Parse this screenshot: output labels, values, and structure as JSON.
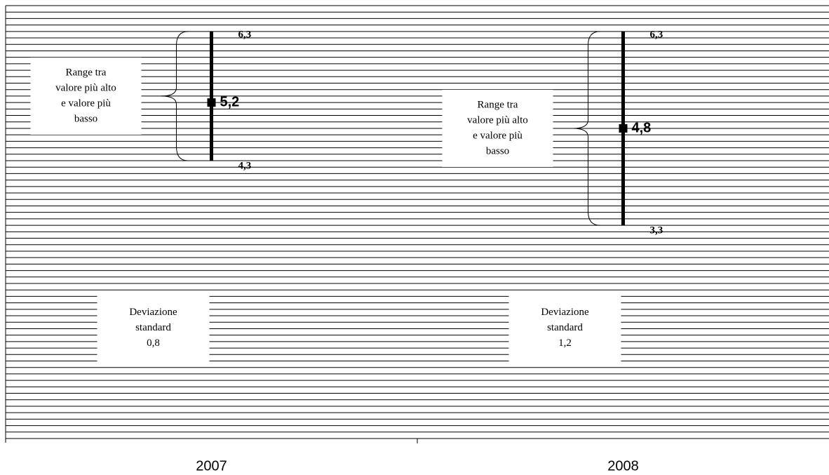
{
  "chart_data": {
    "type": "high-low",
    "categories": [
      "2007",
      "2008"
    ],
    "high": {
      "values": [
        6.3,
        6.3
      ],
      "value_labels": [
        "6,3",
        "6,3"
      ]
    },
    "low": {
      "values": [
        4.3,
        3.3
      ],
      "value_labels": [
        "4,3",
        "3,3"
      ]
    },
    "mean": {
      "values": [
        5.2,
        4.8
      ],
      "value_labels": [
        "5,2",
        "4,8"
      ]
    },
    "range_label": [
      "Range tra",
      "valore più alto",
      "e valore più",
      "basso"
    ],
    "std_dev_label": [
      "Deviazione",
      "standard"
    ],
    "std_dev": {
      "values": [
        0.8,
        1.2
      ],
      "value_labels": [
        "0,8",
        "1,2"
      ]
    },
    "ylim": [
      0,
      6.7
    ],
    "yticks": [
      0,
      0.1,
      0.2,
      0.3,
      0.4,
      0.5,
      0.6,
      0.7,
      0.8,
      0.9,
      1,
      1.1,
      1.2,
      1.3,
      1.4,
      1.5,
      1.6,
      1.7,
      1.8,
      1.9,
      2,
      2.1,
      2.2,
      2.3,
      2.4,
      2.5,
      2.6,
      2.7,
      2.8,
      2.9,
      3,
      3.1,
      3.2,
      3.3,
      3.4,
      3.5,
      3.6,
      3.7,
      3.8,
      3.9,
      4,
      4.1,
      4.2,
      4.3,
      4.4,
      4.5,
      4.6,
      4.7,
      4.8,
      4.9,
      5,
      5.1,
      5.2,
      5.3,
      5.4,
      5.5,
      5.6,
      5.7,
      5.8,
      5.9,
      6,
      6.1,
      6.2,
      6.3,
      6.4,
      6.5,
      6.6,
      6.7
    ],
    "grid": true,
    "color": "#000000"
  }
}
